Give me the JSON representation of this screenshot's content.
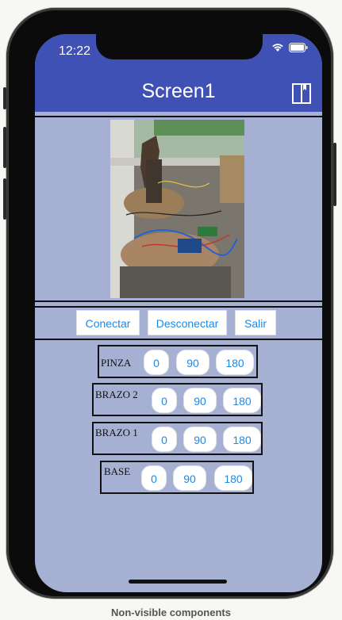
{
  "status": {
    "time": "12:22"
  },
  "appbar": {
    "title": "Screen1"
  },
  "buttons": {
    "connect": "Conectar",
    "disconnect": "Desconectar",
    "exit": "Salir"
  },
  "controls": [
    {
      "label": "PINZA",
      "values": [
        "0",
        "90",
        "180"
      ]
    },
    {
      "label": "BRAZO 2",
      "values": [
        "0",
        "90",
        "180"
      ]
    },
    {
      "label": "BRAZO 1",
      "values": [
        "0",
        "90",
        "180"
      ]
    },
    {
      "label": "BASE",
      "values": [
        "0",
        "90",
        "180"
      ]
    }
  ],
  "footer": {
    "text": "Non-visible components"
  },
  "colors": {
    "appbar": "#3f51b5",
    "background": "#a5b0d3",
    "button_text": "#1e88e5"
  }
}
